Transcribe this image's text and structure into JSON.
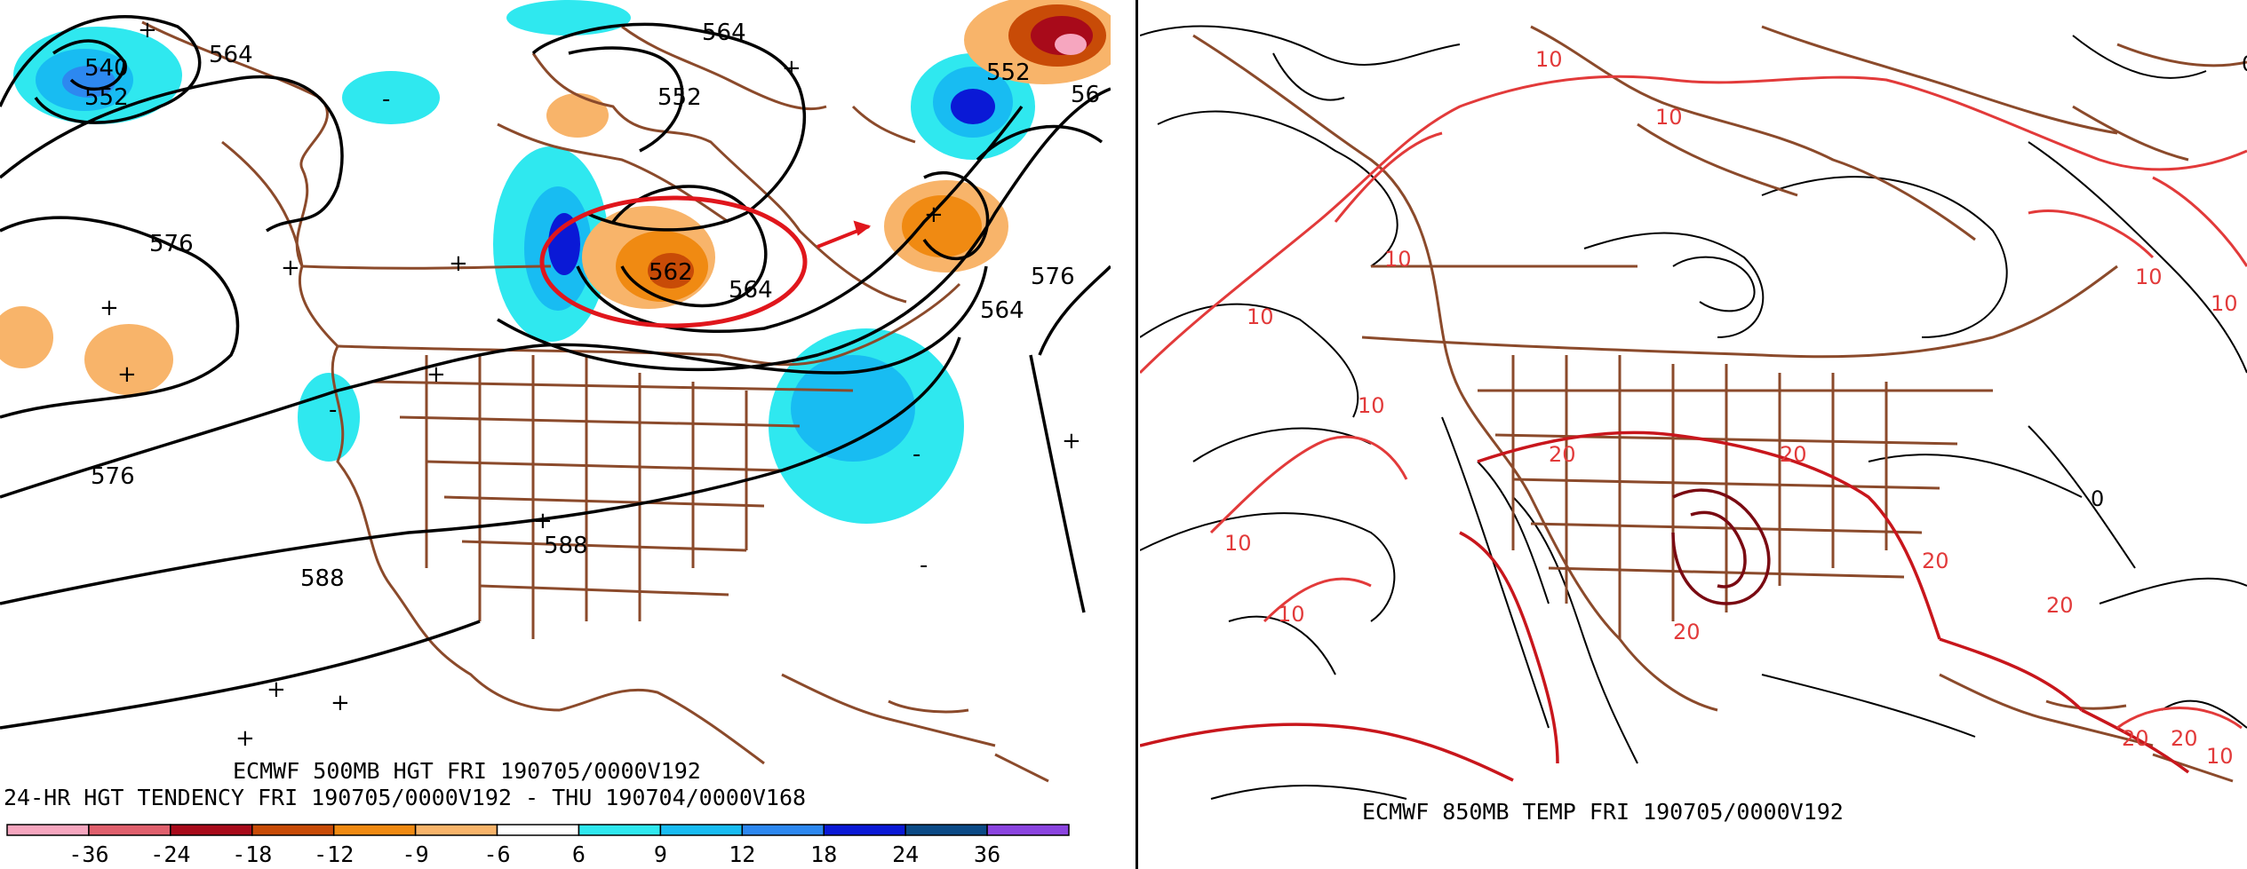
{
  "left_map": {
    "title": "ECMWF 500MB HGT FRI 190705/0000V192",
    "subtitle": "24-HR HGT TENDENCY FRI 190705/0000V192 - THU 190704/0000V168",
    "contour_labels": [
      "540",
      "552",
      "564",
      "564",
      "552",
      "564",
      "576",
      "576",
      "588",
      "588",
      "562",
      "564",
      "576",
      "552",
      "56"
    ],
    "legend": {
      "colors": [
        "#f6a6bf",
        "#e0606d",
        "#a80a1a",
        "#c84b07",
        "#f08a12",
        "#f8b46a",
        "#ffffff",
        "#2fe8ef",
        "#18bcf2",
        "#2d88f0",
        "#0a19d6",
        "#0b4a86",
        "#8b44e0"
      ],
      "ticks": [
        "-36",
        "-24",
        "-18",
        "-12",
        "-9",
        "-6",
        "6",
        "9",
        "12",
        "18",
        "24",
        "36"
      ]
    },
    "highlight": {
      "type": "ellipse",
      "color": "#e0161c"
    }
  },
  "right_map": {
    "title": "ECMWF 850MB TEMP FRI 190705/0000V192",
    "temp_labels": [
      "10",
      "10",
      "10",
      "10",
      "10",
      "10",
      "10",
      "10",
      "10",
      "20",
      "20",
      "20",
      "20",
      "20",
      "20",
      "20",
      "10",
      "0",
      "0"
    ]
  },
  "colors": {
    "borders": "#8b4a2b",
    "contour": "#000000",
    "temp_contour": "#e23a3a",
    "temp_contour_warm": "#c8161c",
    "temp_hot": "#7a0a12"
  }
}
